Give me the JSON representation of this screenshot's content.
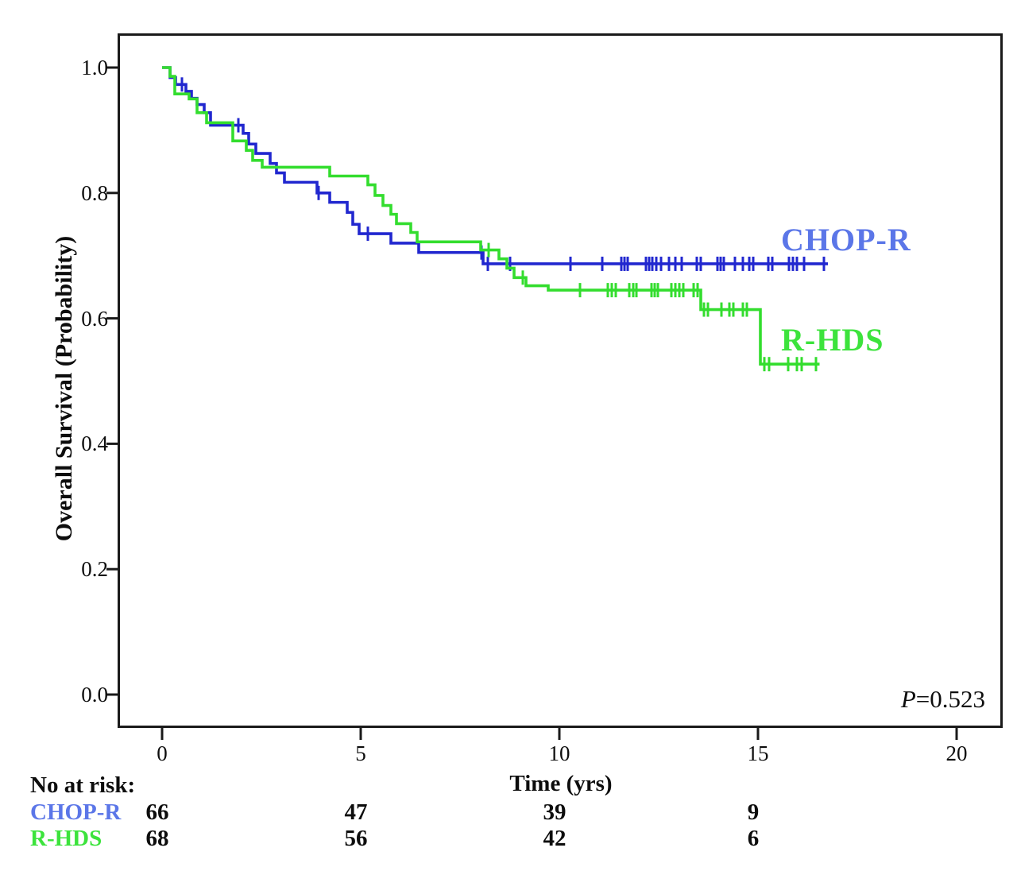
{
  "chart_data": {
    "type": "line",
    "subtype": "kaplan-meier-step",
    "title": "",
    "ylabel": "Overall Survival (Probability)",
    "xlabel": "Time (yrs)",
    "xlim": [
      -1.1,
      21.2
    ],
    "ylim": [
      -0.05,
      1.05
    ],
    "grid": false,
    "x_ticks": [
      {
        "v": 0,
        "label": "0"
      },
      {
        "v": 5,
        "label": "5"
      },
      {
        "v": 10,
        "label": "10"
      },
      {
        "v": 15,
        "label": "15"
      },
      {
        "v": 20,
        "label": "20"
      }
    ],
    "y_ticks": [
      {
        "v": 0.0,
        "label": "0.0"
      },
      {
        "v": 0.2,
        "label": "0.2"
      },
      {
        "v": 0.4,
        "label": "0.4"
      },
      {
        "v": 0.6,
        "label": "0.6"
      },
      {
        "v": 0.8,
        "label": "0.8"
      },
      {
        "v": 1.0,
        "label": "1.0"
      }
    ],
    "annotation": {
      "symbol": "P",
      "rest": "=0.523"
    },
    "frame_color": "#1a1a1a",
    "series": [
      {
        "name": "CHOP-R",
        "color": "#2127cf",
        "label_color": "#5b76e8",
        "steps": [
          [
            0.0,
            1.0
          ],
          [
            0.2,
            0.984
          ],
          [
            0.34,
            0.973
          ],
          [
            0.6,
            0.962
          ],
          [
            0.74,
            0.951
          ],
          [
            0.88,
            0.941
          ],
          [
            1.06,
            0.928
          ],
          [
            1.22,
            0.908
          ],
          [
            2.04,
            0.895
          ],
          [
            2.18,
            0.878
          ],
          [
            2.36,
            0.863
          ],
          [
            2.72,
            0.847
          ],
          [
            2.88,
            0.832
          ],
          [
            3.08,
            0.817
          ],
          [
            3.9,
            0.8
          ],
          [
            4.22,
            0.785
          ],
          [
            4.66,
            0.769
          ],
          [
            4.8,
            0.75
          ],
          [
            4.96,
            0.735
          ],
          [
            5.76,
            0.72
          ],
          [
            6.46,
            0.705
          ],
          [
            8.08,
            0.687
          ]
        ],
        "end_time": 16.76,
        "censor_times": [
          0.5,
          1.92,
          3.94,
          5.18,
          8.04,
          8.2,
          8.76,
          10.28,
          11.08,
          11.56,
          11.64,
          11.72,
          12.18,
          12.26,
          12.34,
          12.44,
          12.56,
          12.76,
          12.92,
          13.08,
          13.46,
          13.56,
          13.98,
          14.06,
          14.14,
          14.42,
          14.62,
          14.78,
          14.88,
          15.26,
          15.36,
          15.78,
          15.88,
          15.98,
          16.16,
          16.66
        ]
      },
      {
        "name": "R-HDS",
        "color": "#33dd2e",
        "label_color": "#3ce33c",
        "steps": [
          [
            0.0,
            1.0
          ],
          [
            0.2,
            0.986
          ],
          [
            0.32,
            0.958
          ],
          [
            0.68,
            0.95
          ],
          [
            0.88,
            0.928
          ],
          [
            1.12,
            0.912
          ],
          [
            1.78,
            0.883
          ],
          [
            2.12,
            0.868
          ],
          [
            2.28,
            0.852
          ],
          [
            2.52,
            0.841
          ],
          [
            4.22,
            0.827
          ],
          [
            5.18,
            0.813
          ],
          [
            5.36,
            0.796
          ],
          [
            5.56,
            0.78
          ],
          [
            5.76,
            0.766
          ],
          [
            5.9,
            0.751
          ],
          [
            6.26,
            0.737
          ],
          [
            6.42,
            0.722
          ],
          [
            8.02,
            0.709
          ],
          [
            8.48,
            0.695
          ],
          [
            8.68,
            0.68
          ],
          [
            8.86,
            0.665
          ],
          [
            9.16,
            0.652
          ],
          [
            9.72,
            0.645
          ],
          [
            13.56,
            0.614
          ],
          [
            15.06,
            0.527
          ]
        ],
        "end_time": 16.55,
        "censor_times": [
          8.22,
          9.08,
          10.52,
          11.22,
          11.32,
          11.42,
          11.76,
          11.86,
          11.94,
          12.32,
          12.4,
          12.48,
          12.82,
          12.92,
          13.02,
          13.12,
          13.38,
          13.48,
          13.64,
          13.74,
          14.08,
          14.28,
          14.38,
          14.62,
          14.72,
          15.16,
          15.28,
          15.76,
          15.98,
          16.1,
          16.46
        ]
      }
    ],
    "risk_table": {
      "title": "No at risk:",
      "time_axis_label": "Time (yrs)",
      "times": [
        0,
        5,
        10,
        15
      ],
      "rows": [
        {
          "label": "CHOP-R",
          "color": "#5b76e8",
          "values": [
            "66",
            "47",
            "39",
            "9"
          ]
        },
        {
          "label": "R-HDS",
          "color": "#3ce33c",
          "values": [
            "68",
            "56",
            "42",
            "6"
          ]
        }
      ]
    }
  }
}
